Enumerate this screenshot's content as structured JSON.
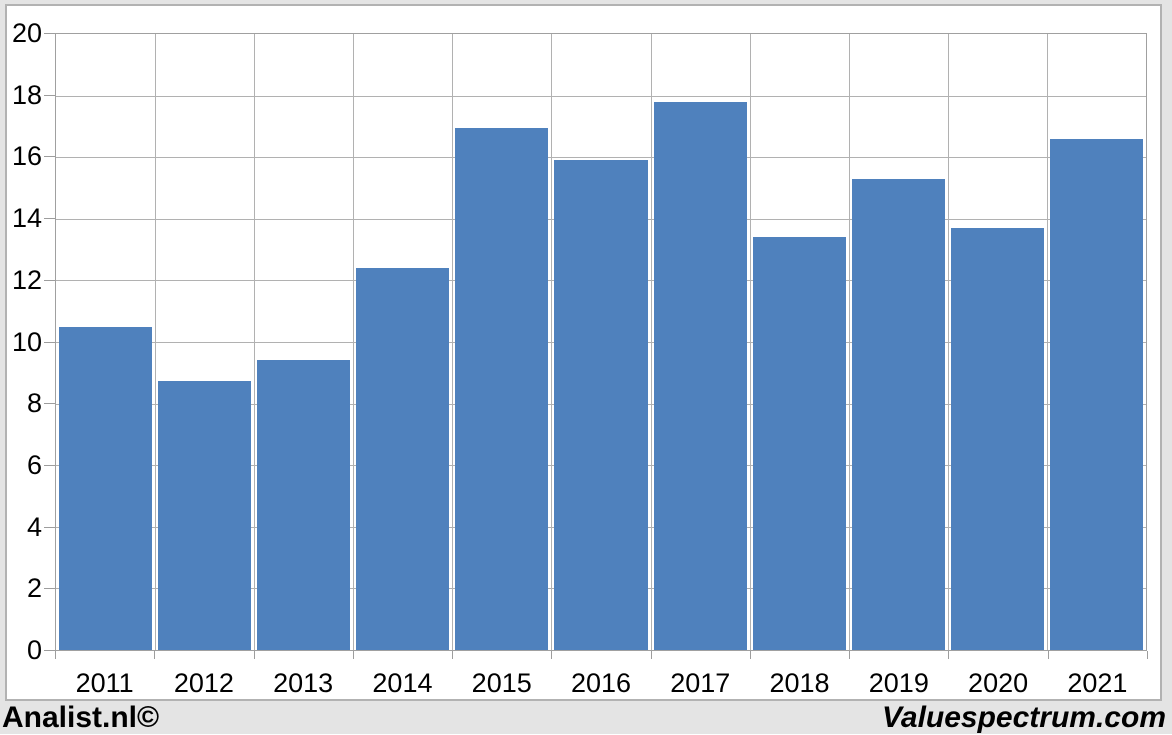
{
  "page": {
    "background": "#e4e4e4"
  },
  "chart_frame": {
    "background": "#ffffff",
    "border_color": "#b2b2b2"
  },
  "chart_data": {
    "type": "bar",
    "title": "",
    "subtitle": "",
    "xlabel": "",
    "ylabel": "",
    "categories": [
      "2011",
      "2012",
      "2013",
      "2014",
      "2015",
      "2016",
      "2017",
      "2018",
      "2019",
      "2020",
      "2021"
    ],
    "values": [
      10.5,
      8.75,
      9.4,
      12.4,
      16.95,
      15.9,
      17.8,
      13.4,
      15.3,
      13.7,
      16.6
    ],
    "ylim": [
      0,
      20
    ],
    "yticks": [
      0,
      2,
      4,
      6,
      8,
      10,
      12,
      14,
      16,
      18,
      20
    ],
    "grid": "horizontal-and-vertical",
    "legend": "none",
    "bar_color": "#4f81bd",
    "gridline_color": "#b1b1b1",
    "axis_border_color": "#a0a0a0",
    "tick_color": "#9d9d9d",
    "label_color": "#000000"
  },
  "footer": {
    "left_label": "Analist.nl©",
    "right_label": "Valuespectrum.com"
  }
}
